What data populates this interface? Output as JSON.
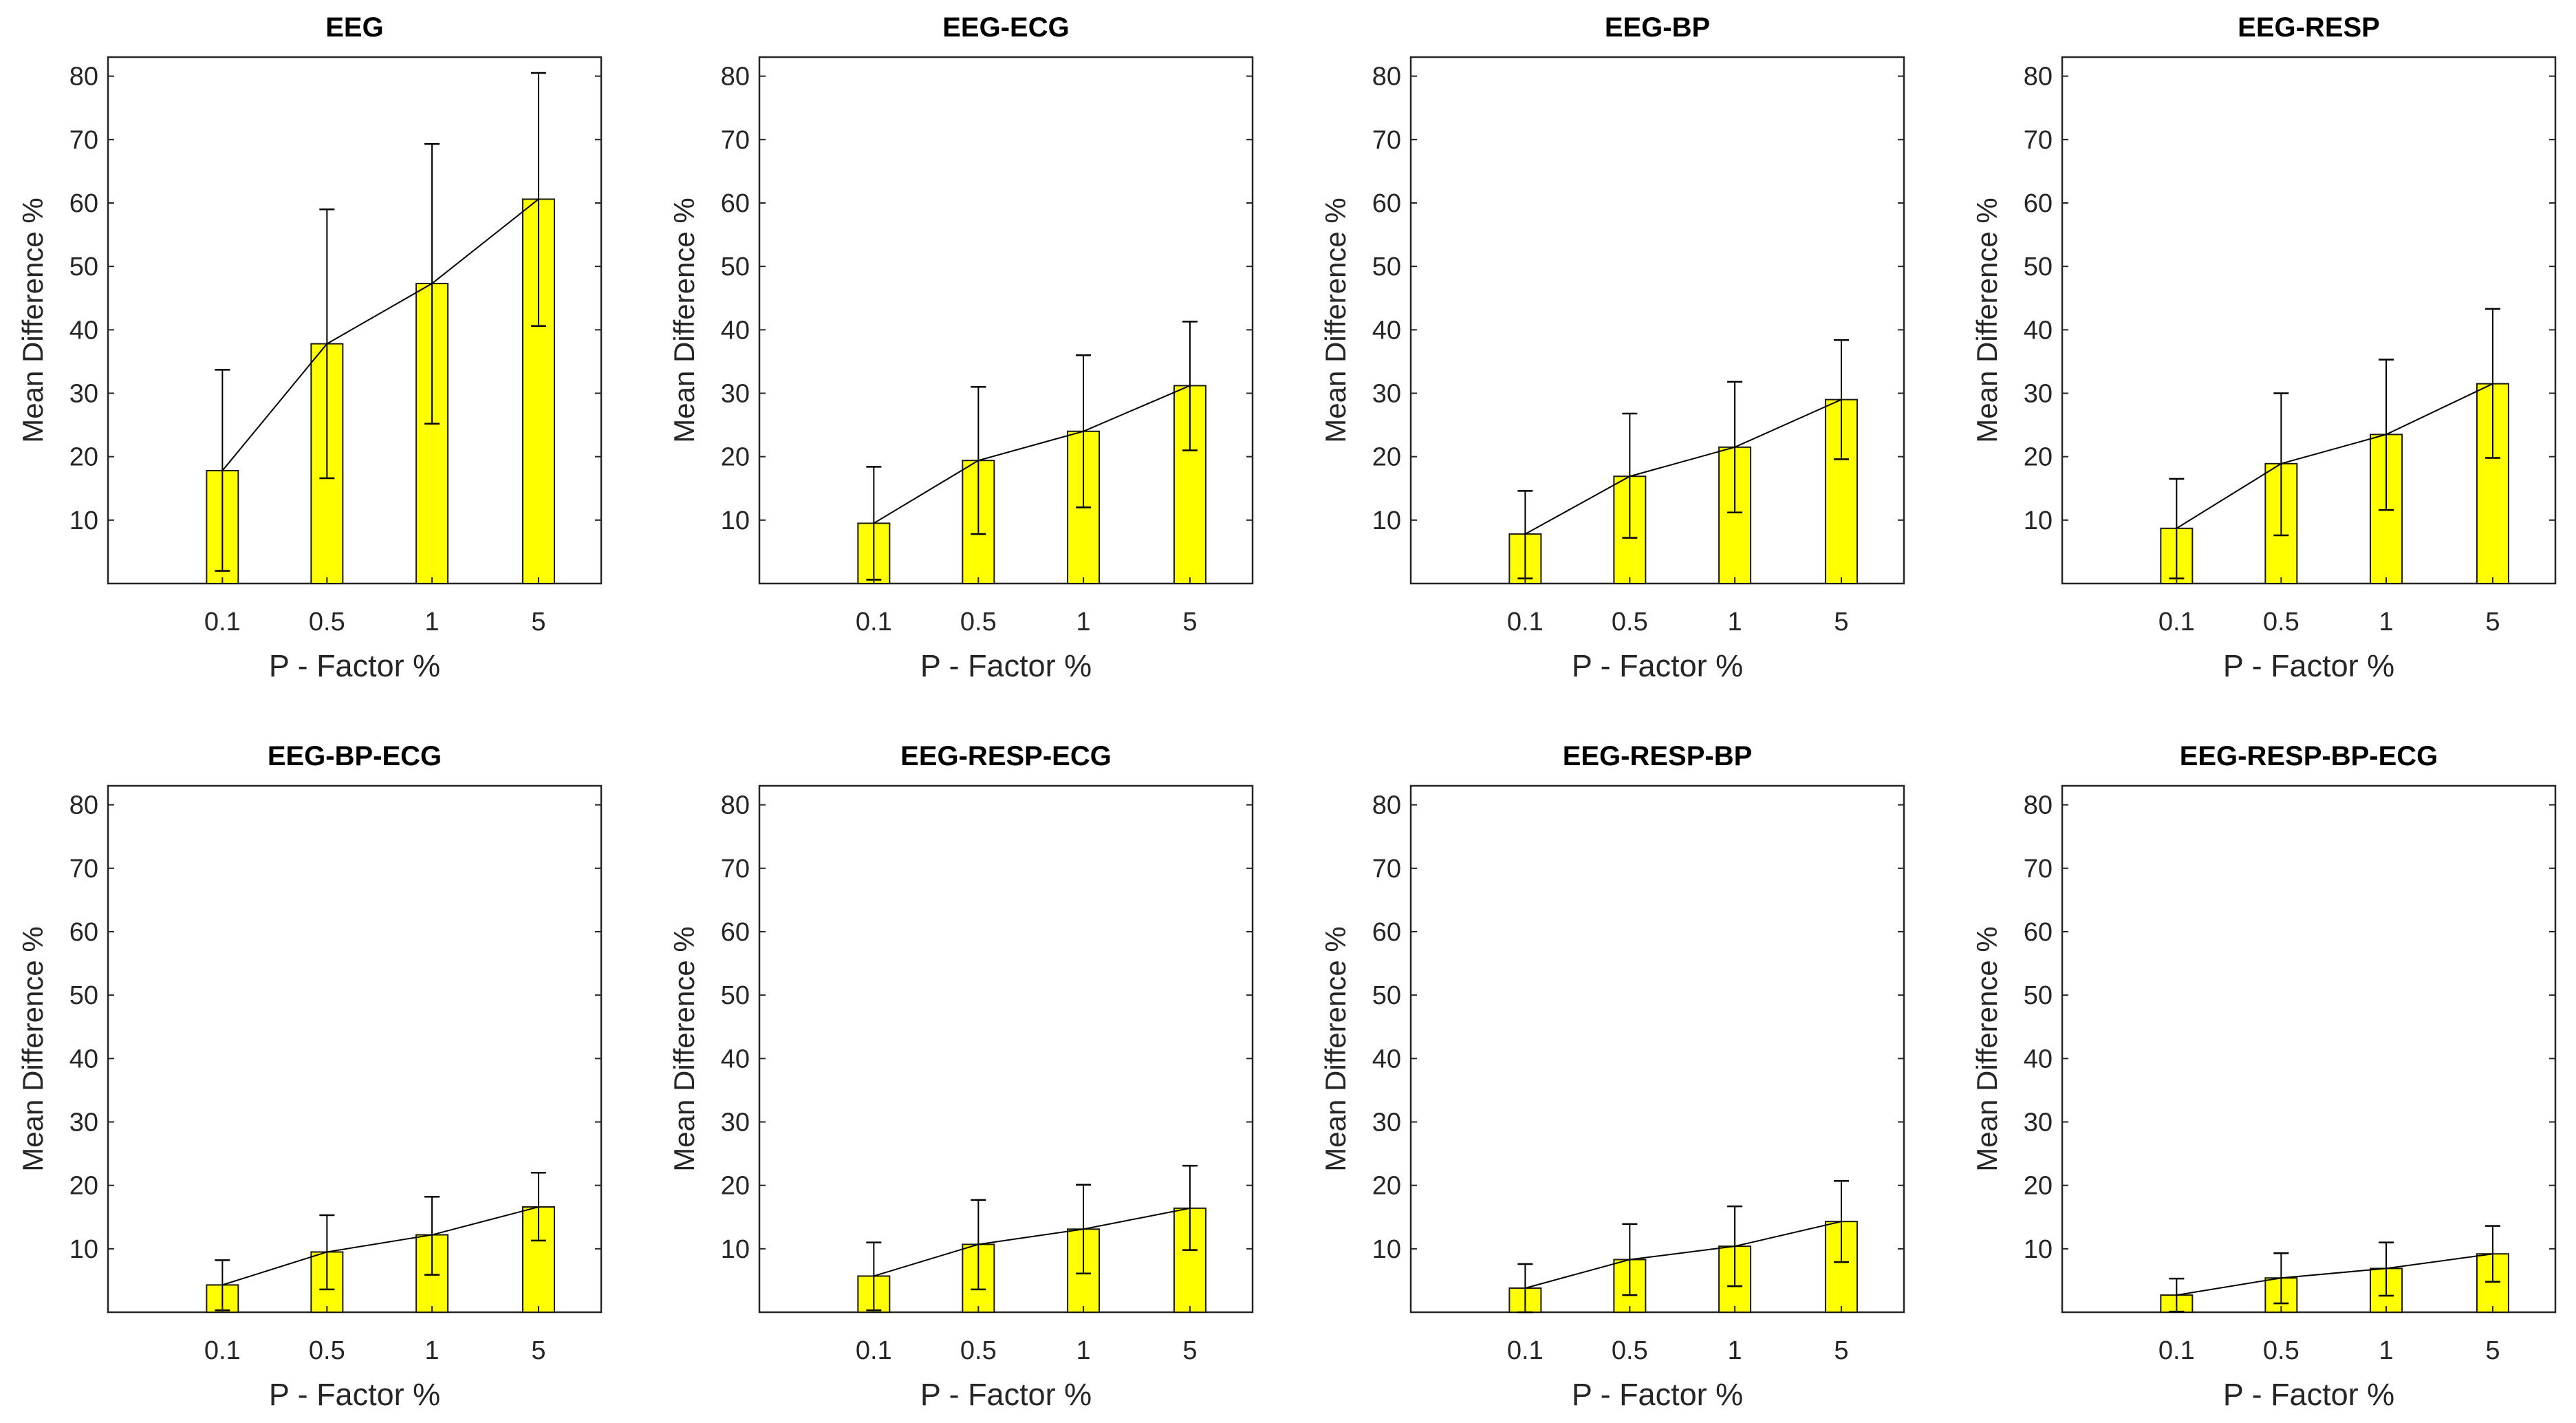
{
  "chart_data": [
    {
      "type": "bar",
      "title": "EEG",
      "categories": [
        "0.1",
        "0.5",
        "1",
        "5"
      ],
      "values": [
        17.8,
        37.8,
        47.3,
        60.6
      ],
      "err_low": [
        2.0,
        16.6,
        25.2,
        40.6
      ],
      "err_high": [
        33.7,
        59.0,
        69.3,
        80.5
      ],
      "xlabel": "P - Factor %",
      "ylabel": "Mean Difference %",
      "ylim": [
        0,
        83
      ],
      "yticks": [
        10,
        20,
        30,
        40,
        50,
        60,
        70,
        80
      ],
      "bar_color": "#ffff00",
      "trend_line": true
    },
    {
      "type": "bar",
      "title": "EEG-ECG",
      "categories": [
        "0.1",
        "0.5",
        "1",
        "5"
      ],
      "values": [
        9.5,
        19.4,
        24.0,
        31.2
      ],
      "err_low": [
        0.6,
        7.8,
        12.0,
        21.0
      ],
      "err_high": [
        18.4,
        31.0,
        36.0,
        41.3
      ],
      "xlabel": "P - Factor %",
      "ylabel": "Mean Difference %",
      "ylim": [
        0,
        83
      ],
      "yticks": [
        10,
        20,
        30,
        40,
        50,
        60,
        70,
        80
      ],
      "bar_color": "#ffff00",
      "trend_line": true
    },
    {
      "type": "bar",
      "title": "EEG-BP",
      "categories": [
        "0.1",
        "0.5",
        "1",
        "5"
      ],
      "values": [
        7.8,
        16.9,
        21.5,
        29.0
      ],
      "err_low": [
        0.8,
        7.2,
        11.2,
        19.6
      ],
      "err_high": [
        14.6,
        26.8,
        31.8,
        38.4
      ],
      "xlabel": "P - Factor %",
      "ylabel": "Mean Difference %",
      "ylim": [
        0,
        83
      ],
      "yticks": [
        10,
        20,
        30,
        40,
        50,
        60,
        70,
        80
      ],
      "bar_color": "#ffff00",
      "trend_line": true
    },
    {
      "type": "bar",
      "title": "EEG-RESP",
      "categories": [
        "0.1",
        "0.5",
        "1",
        "5"
      ],
      "values": [
        8.7,
        18.9,
        23.5,
        31.5
      ],
      "err_low": [
        0.8,
        7.6,
        11.6,
        19.8
      ],
      "err_high": [
        16.5,
        30.0,
        35.3,
        43.3
      ],
      "xlabel": "P - Factor %",
      "ylabel": "Mean Difference %",
      "ylim": [
        0,
        83
      ],
      "yticks": [
        10,
        20,
        30,
        40,
        50,
        60,
        70,
        80
      ],
      "bar_color": "#ffff00",
      "trend_line": true
    },
    {
      "type": "bar",
      "title": "EEG-BP-ECG",
      "categories": [
        "0.1",
        "0.5",
        "1",
        "5"
      ],
      "values": [
        4.3,
        9.5,
        12.2,
        16.6
      ],
      "err_low": [
        0.3,
        3.6,
        5.9,
        11.3
      ],
      "err_high": [
        8.2,
        15.3,
        18.2,
        22.0
      ],
      "xlabel": "P - Factor %",
      "ylabel": "Mean Difference %",
      "ylim": [
        0,
        83
      ],
      "yticks": [
        10,
        20,
        30,
        40,
        50,
        60,
        70,
        80
      ],
      "bar_color": "#ffff00",
      "trend_line": true
    },
    {
      "type": "bar",
      "title": "EEG-RESP-ECG",
      "categories": [
        "0.1",
        "0.5",
        "1",
        "5"
      ],
      "values": [
        5.7,
        10.7,
        13.1,
        16.4
      ],
      "err_low": [
        0.3,
        3.6,
        6.1,
        9.8
      ],
      "err_high": [
        11.0,
        17.7,
        20.1,
        23.1
      ],
      "xlabel": "P - Factor %",
      "ylabel": "Mean Difference %",
      "ylim": [
        0,
        83
      ],
      "yticks": [
        10,
        20,
        30,
        40,
        50,
        60,
        70,
        80
      ],
      "bar_color": "#ffff00",
      "trend_line": true
    },
    {
      "type": "bar",
      "title": "EEG-RESP-BP",
      "categories": [
        "0.1",
        "0.5",
        "1",
        "5"
      ],
      "values": [
        3.8,
        8.3,
        10.4,
        14.3
      ],
      "err_low": [
        0.0,
        2.7,
        4.1,
        7.9
      ],
      "err_high": [
        7.6,
        13.9,
        16.7,
        20.7
      ],
      "xlabel": "P - Factor %",
      "ylabel": "Mean Difference %",
      "ylim": [
        0,
        83
      ],
      "yticks": [
        10,
        20,
        30,
        40,
        50,
        60,
        70,
        80
      ],
      "bar_color": "#ffff00",
      "trend_line": true
    },
    {
      "type": "bar",
      "title": "EEG-RESP-BP-ECG",
      "categories": [
        "0.1",
        "0.5",
        "1",
        "5"
      ],
      "values": [
        2.7,
        5.4,
        6.9,
        9.2
      ],
      "err_low": [
        0.1,
        1.4,
        2.6,
        4.8
      ],
      "err_high": [
        5.3,
        9.3,
        11.0,
        13.6
      ],
      "xlabel": "P - Factor %",
      "ylabel": "Mean Difference %",
      "ylim": [
        0,
        83
      ],
      "yticks": [
        10,
        20,
        30,
        40,
        50,
        60,
        70,
        80
      ],
      "bar_color": "#ffff00",
      "trend_line": true
    }
  ]
}
